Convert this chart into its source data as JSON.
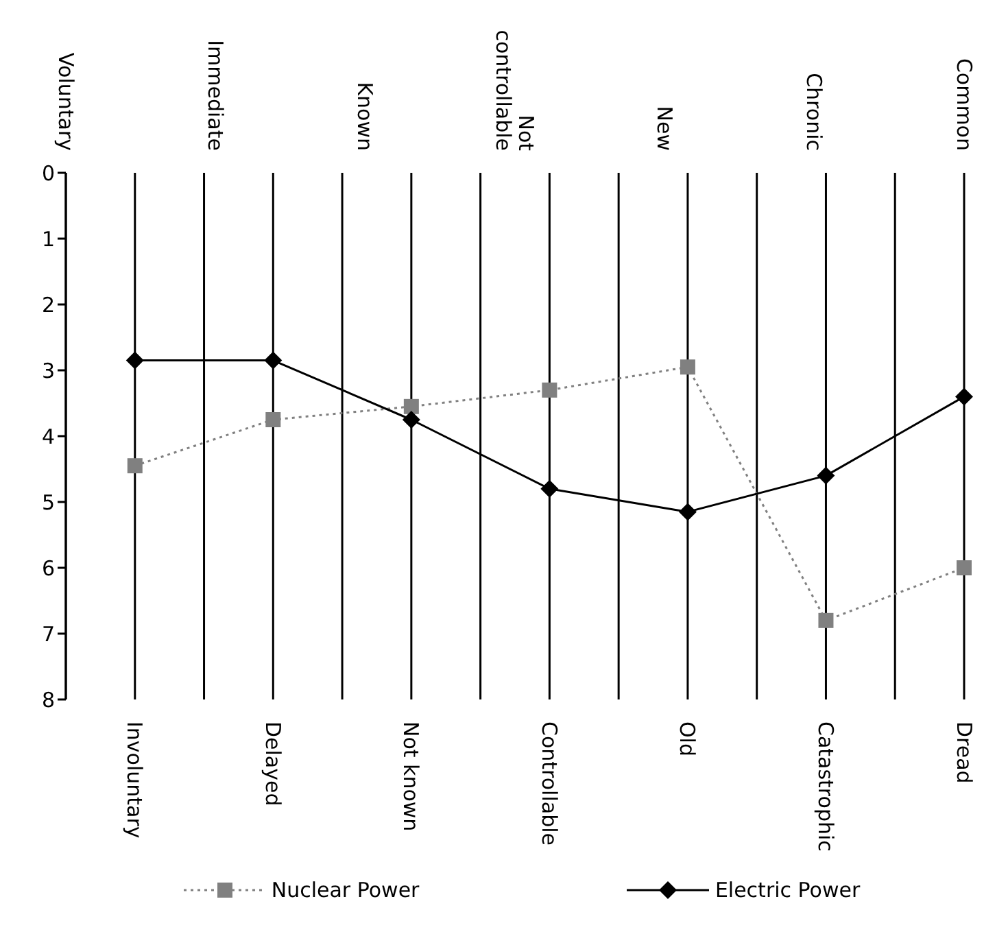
{
  "chart_data": {
    "type": "line",
    "annotations": [
      "Voluntary",
      "Immediate",
      "Known",
      "Not controllable",
      "New",
      "Chronic",
      "Common"
    ],
    "categories": [
      "Involuntary",
      "Delayed",
      "Not known",
      "Controllable",
      "Old",
      "Catastrophic",
      "Dread"
    ],
    "series": [
      {
        "name": "Nuclear Power",
        "color": "#808080",
        "marker": "square",
        "line_style": "dotted",
        "values": [
          4.45,
          3.75,
          3.55,
          3.3,
          2.95,
          6.8,
          6.0
        ]
      },
      {
        "name": "Electric Power",
        "color": "#000000",
        "marker": "diamond",
        "line_style": "solid",
        "values": [
          2.85,
          2.85,
          3.75,
          4.8,
          5.15,
          4.6,
          3.4
        ]
      }
    ],
    "ylim": [
      8,
      0
    ],
    "yticks": [
      0,
      1,
      2,
      3,
      4,
      5,
      6,
      7,
      8
    ],
    "grid": "x",
    "legend": "bottom"
  }
}
